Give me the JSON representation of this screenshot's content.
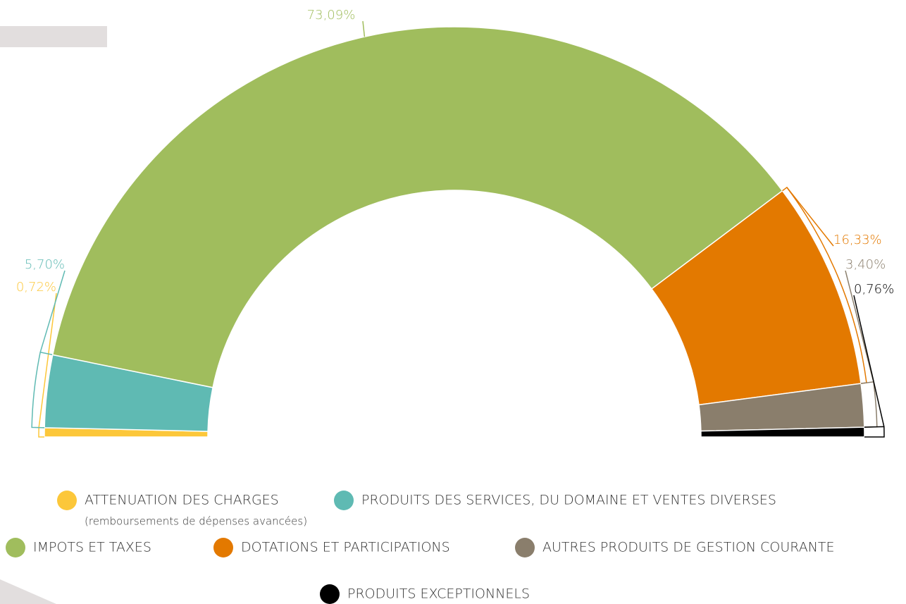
{
  "chart_data": {
    "type": "semi-donut",
    "categories": [
      "ATTENUATION DES CHARGES",
      "PRODUITS DES SERVICES, DU DOMAINE ET VENTES DIVERSES",
      "IMPOTS ET TAXES",
      "DOTATIONS ET PARTICIPATIONS",
      "AUTRES PRODUITS DE GESTION COURANTE",
      "PRODUITS EXCEPTIONNELS"
    ],
    "values": [
      0.72,
      5.7,
      73.09,
      16.33,
      3.4,
      0.76
    ],
    "value_labels": [
      "0,72%",
      "5,70%",
      "73,09%",
      "16,33%",
      "3,40%",
      "0,76%"
    ],
    "colors": [
      "#fcc73a",
      "#5fbab3",
      "#a0bd5d",
      "#e37900",
      "#8a7e6c",
      "#000000"
    ],
    "annotations": [
      "(remboursements de dépenses avancées)"
    ]
  }
}
